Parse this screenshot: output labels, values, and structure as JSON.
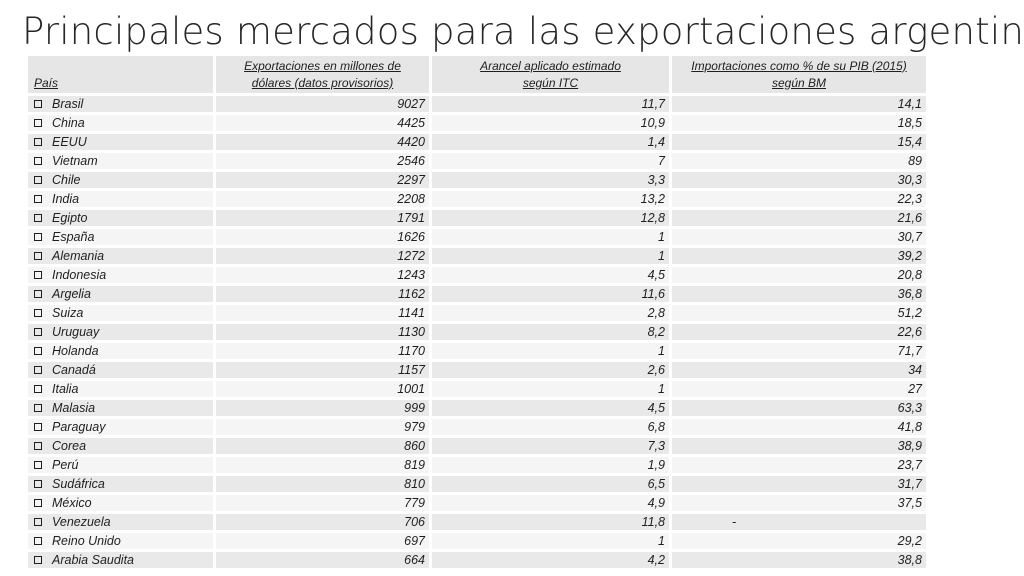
{
  "title": "Principales mercados para las exportaciones argentinas",
  "table": {
    "headers": {
      "pais": "País",
      "exports_l1": "Exportaciones en millones de",
      "exports_l2": "dólares (datos provisorios)",
      "arancel_l1": "Arancel aplicado estimado",
      "arancel_l2": "según ITC",
      "import_l1": "Importaciones como % de su PIB (2015)",
      "import_l2": "según BM"
    },
    "rows": [
      {
        "pais": "Brasil",
        "exportaciones": "9027",
        "arancel": "11,7",
        "importaciones": "14,1"
      },
      {
        "pais": "China",
        "exportaciones": "4425",
        "arancel": "10,9",
        "importaciones": "18,5"
      },
      {
        "pais": "EEUU",
        "exportaciones": "4420",
        "arancel": "1,4",
        "importaciones": "15,4"
      },
      {
        "pais": "Vietnam",
        "exportaciones": "2546",
        "arancel": "7",
        "importaciones": "89"
      },
      {
        "pais": "Chile",
        "exportaciones": "2297",
        "arancel": "3,3",
        "importaciones": "30,3"
      },
      {
        "pais": "India",
        "exportaciones": "2208",
        "arancel": "13,2",
        "importaciones": "22,3"
      },
      {
        "pais": "Egipto",
        "exportaciones": "1791",
        "arancel": "12,8",
        "importaciones": "21,6"
      },
      {
        "pais": "España",
        "exportaciones": "1626",
        "arancel": "1",
        "importaciones": "30,7"
      },
      {
        "pais": "Alemania",
        "exportaciones": "1272",
        "arancel": "1",
        "importaciones": "39,2"
      },
      {
        "pais": "Indonesia",
        "exportaciones": "1243",
        "arancel": "4,5",
        "importaciones": "20,8"
      },
      {
        "pais": "Argelia",
        "exportaciones": "1162",
        "arancel": "11,6",
        "importaciones": "36,8"
      },
      {
        "pais": "Suiza",
        "exportaciones": "1141",
        "arancel": "2,8",
        "importaciones": "51,2"
      },
      {
        "pais": "Uruguay",
        "exportaciones": "1130",
        "arancel": "8,2",
        "importaciones": "22,6"
      },
      {
        "pais": "Holanda",
        "exportaciones": "1170",
        "arancel": "1",
        "importaciones": "71,7"
      },
      {
        "pais": "Canadá",
        "exportaciones": "1157",
        "arancel": "2,6",
        "importaciones": "34"
      },
      {
        "pais": "Italia",
        "exportaciones": "1001",
        "arancel": "1",
        "importaciones": "27"
      },
      {
        "pais": "Malasia",
        "exportaciones": "999",
        "arancel": "4,5",
        "importaciones": "63,3"
      },
      {
        "pais": "Paraguay",
        "exportaciones": "979",
        "arancel": "6,8",
        "importaciones": "41,8"
      },
      {
        "pais": "Corea",
        "exportaciones": "860",
        "arancel": "7,3",
        "importaciones": "38,9"
      },
      {
        "pais": "Perú",
        "exportaciones": "819",
        "arancel": "1,9",
        "importaciones": "23,7"
      },
      {
        "pais": "Sudáfrica",
        "exportaciones": "810",
        "arancel": "6,5",
        "importaciones": "31,7"
      },
      {
        "pais": "México",
        "exportaciones": "779",
        "arancel": "4,9",
        "importaciones": "37,5"
      },
      {
        "pais": "Venezuela",
        "exportaciones": "706",
        "arancel": "11,8",
        "importaciones": "-"
      },
      {
        "pais": "Reino Unido",
        "exportaciones": "697",
        "arancel": "1",
        "importaciones": "29,2"
      },
      {
        "pais": "Arabia Saudita",
        "exportaciones": "664",
        "arancel": "4,2",
        "importaciones": "38,8"
      }
    ]
  }
}
